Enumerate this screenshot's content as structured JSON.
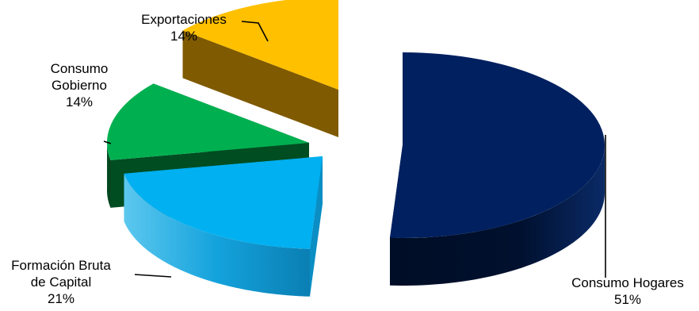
{
  "chart_data": {
    "type": "pie",
    "style": "3d-exploded",
    "legend": "none",
    "slices": [
      {
        "category": "Consumo Hogares",
        "value": 51,
        "value_label": "51%",
        "label_lines": [
          "Consumo Hogares",
          "51%"
        ],
        "color": "#002060",
        "side_color": "#00102e"
      },
      {
        "category": "Formación Bruta de Capital",
        "value": 21,
        "value_label": "21%",
        "label_lines": [
          "Formación Bruta",
          "de Capital",
          "21%"
        ],
        "color": "#00b0f0",
        "side_color": "#0a8ec4"
      },
      {
        "category": "Consumo Gobierno",
        "value": 14,
        "value_label": "14%",
        "label_lines": [
          "Consumo",
          "Gobierno",
          "14%"
        ],
        "color": "#00b050",
        "side_color": "#004d22"
      },
      {
        "category": "Exportaciones",
        "value": 14,
        "value_label": "14%",
        "label_lines": [
          "Exportaciones",
          "14%"
        ],
        "color": "#ffc000",
        "side_color": "#7f5a00"
      }
    ]
  }
}
